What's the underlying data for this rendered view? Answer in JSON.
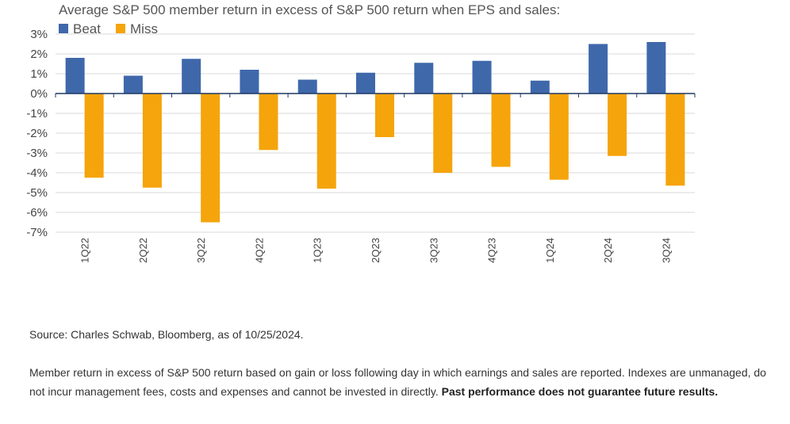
{
  "chart_data": {
    "type": "bar",
    "title": "Average S&P 500 member return in excess of S&P 500 return when EPS and sales:",
    "categories": [
      "1Q22",
      "2Q22",
      "3Q22",
      "4Q22",
      "1Q23",
      "2Q23",
      "3Q23",
      "4Q23",
      "1Q24",
      "2Q24",
      "3Q24"
    ],
    "series": [
      {
        "name": "Beat",
        "color": "#3f68ab",
        "values": [
          1.8,
          0.9,
          1.75,
          1.2,
          0.7,
          1.05,
          1.55,
          1.65,
          0.65,
          2.5,
          2.6
        ]
      },
      {
        "name": "Miss",
        "color": "#f5a40b",
        "values": [
          -4.25,
          -4.75,
          -6.5,
          -2.85,
          -4.8,
          -2.2,
          -4.0,
          -3.7,
          -4.35,
          -3.15,
          -4.65
        ]
      }
    ],
    "ylim": [
      -7,
      3
    ],
    "yticks": [
      3,
      2,
      1,
      0,
      -1,
      -2,
      -3,
      -4,
      -5,
      -6,
      -7
    ],
    "ytick_labels": [
      "3%",
      "2%",
      "1%",
      "0%",
      "-1%",
      "-2%",
      "-3%",
      "-4%",
      "-5%",
      "-6%",
      "-7%"
    ],
    "xlabel": "",
    "ylabel": "",
    "legend_position": "top-left",
    "grid": true
  },
  "footer": {
    "source": "Source: Charles Schwab, Bloomberg, as of 10/25/2024.",
    "disclaimer_text": "Member return in excess of S&P 500 return based on gain or loss following day in which earnings and sales are reported. Indexes are unmanaged, do not incur management fees, costs and expenses and cannot be invested in directly.",
    "disclaimer_bold": "Past performance does not guarantee future results."
  }
}
